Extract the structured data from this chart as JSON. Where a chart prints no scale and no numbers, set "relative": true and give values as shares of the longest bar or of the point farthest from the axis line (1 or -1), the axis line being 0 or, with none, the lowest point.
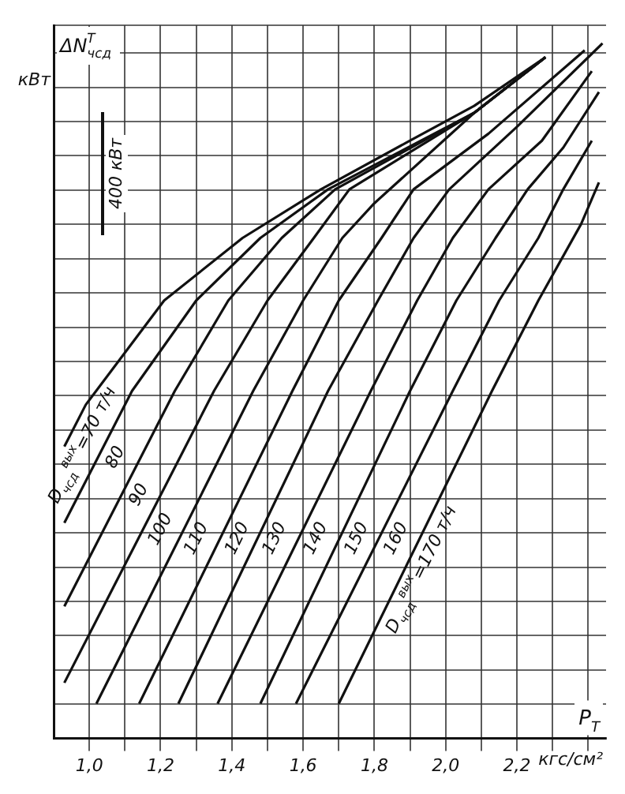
{
  "chart_data": {
    "type": "line",
    "relative": true,
    "ylabel": "ΔN$^{Т}$$_{чсд}$",
    "xlabel": "P$_{Т}$",
    "annotations": [
      "кВт",
      "400 кВт",
      "кгс/см²"
    ],
    "xlim": [
      0.9,
      2.45
    ],
    "xticks": [
      {
        "value": 1.0,
        "label": "1,0"
      },
      {
        "value": 1.1,
        "label": null
      },
      {
        "value": 1.2,
        "label": "1,2"
      },
      {
        "value": 1.3,
        "label": null
      },
      {
        "value": 1.4,
        "label": "1,4"
      },
      {
        "value": 1.5,
        "label": null
      },
      {
        "value": 1.6,
        "label": "1,6"
      },
      {
        "value": 1.7,
        "label": null
      },
      {
        "value": 1.8,
        "label": "1,8"
      },
      {
        "value": 1.9,
        "label": null
      },
      {
        "value": 2.0,
        "label": "2,0"
      },
      {
        "value": 2.1,
        "label": null
      },
      {
        "value": 2.2,
        "label": "2,2"
      },
      {
        "value": 2.3,
        "label": null
      },
      {
        "value": 2.4,
        "label": null
      }
    ],
    "grid": true,
    "legend": false,
    "marker": "none",
    "line_style": "solid",
    "series": [
      {
        "name": "D$_{чсд}$$^{вых}$=70 т/ч",
        "color": "#111111",
        "x": [
          0.93,
          0.99,
          1.21,
          1.43,
          1.65,
          1.9,
          2.08,
          2.28
        ],
        "values": [
          0.42,
          0.48,
          0.63,
          0.72,
          0.79,
          0.86,
          0.91,
          0.98
        ]
      },
      {
        "name": "80",
        "color": "#111111",
        "x": [
          0.93,
          1.12,
          1.3,
          1.48,
          1.67,
          2.08,
          2.28
        ],
        "values": [
          0.31,
          0.5,
          0.63,
          0.72,
          0.79,
          0.9,
          0.98
        ]
      },
      {
        "name": "90",
        "color": "#111111",
        "x": [
          0.93,
          1.24,
          1.39,
          1.54,
          1.69,
          2.08,
          2.28
        ],
        "values": [
          0.19,
          0.5,
          0.63,
          0.72,
          0.79,
          0.9,
          0.98
        ]
      },
      {
        "name": "100",
        "color": "#111111",
        "x": [
          0.93,
          1.35,
          1.5,
          1.63,
          1.73,
          2.08,
          2.28
        ],
        "values": [
          0.08,
          0.5,
          0.63,
          0.72,
          0.79,
          0.9,
          0.98
        ]
      },
      {
        "name": "110",
        "color": "#111111",
        "x": [
          1.02,
          1.46,
          1.6,
          1.71,
          1.8,
          2.08,
          2.28
        ],
        "values": [
          0.05,
          0.5,
          0.63,
          0.72,
          0.77,
          0.9,
          0.98
        ]
      },
      {
        "name": "120",
        "color": "#111111",
        "x": [
          1.14,
          1.57,
          1.7,
          1.82,
          1.91,
          2.12,
          2.39
        ],
        "values": [
          0.05,
          0.5,
          0.63,
          0.72,
          0.79,
          0.87,
          0.99
        ]
      },
      {
        "name": "130",
        "color": "#111111",
        "x": [
          1.25,
          1.67,
          1.81,
          1.91,
          2.01,
          2.2,
          2.44
        ],
        "values": [
          0.05,
          0.5,
          0.63,
          0.72,
          0.79,
          0.88,
          1.0
        ]
      },
      {
        "name": "140",
        "color": "#111111",
        "x": [
          1.36,
          1.79,
          1.92,
          2.02,
          2.12,
          2.27,
          2.41
        ],
        "values": [
          0.05,
          0.5,
          0.63,
          0.72,
          0.79,
          0.86,
          0.96
        ]
      },
      {
        "name": "150",
        "color": "#111111",
        "x": [
          1.48,
          1.9,
          2.03,
          2.14,
          2.23,
          2.33,
          2.43
        ],
        "values": [
          0.05,
          0.5,
          0.63,
          0.72,
          0.79,
          0.85,
          0.93
        ]
      },
      {
        "name": "160",
        "color": "#111111",
        "x": [
          1.58,
          2.02,
          2.15,
          2.26,
          2.33,
          2.41
        ],
        "values": [
          0.05,
          0.5,
          0.63,
          0.72,
          0.79,
          0.86
        ]
      },
      {
        "name": "D$_{чсд}$$^{вых}$=170 т/ч",
        "color": "#111111",
        "x": [
          1.7,
          2.13,
          2.26,
          2.38,
          2.43
        ],
        "values": [
          0.05,
          0.5,
          0.63,
          0.74,
          0.8
        ]
      }
    ]
  }
}
